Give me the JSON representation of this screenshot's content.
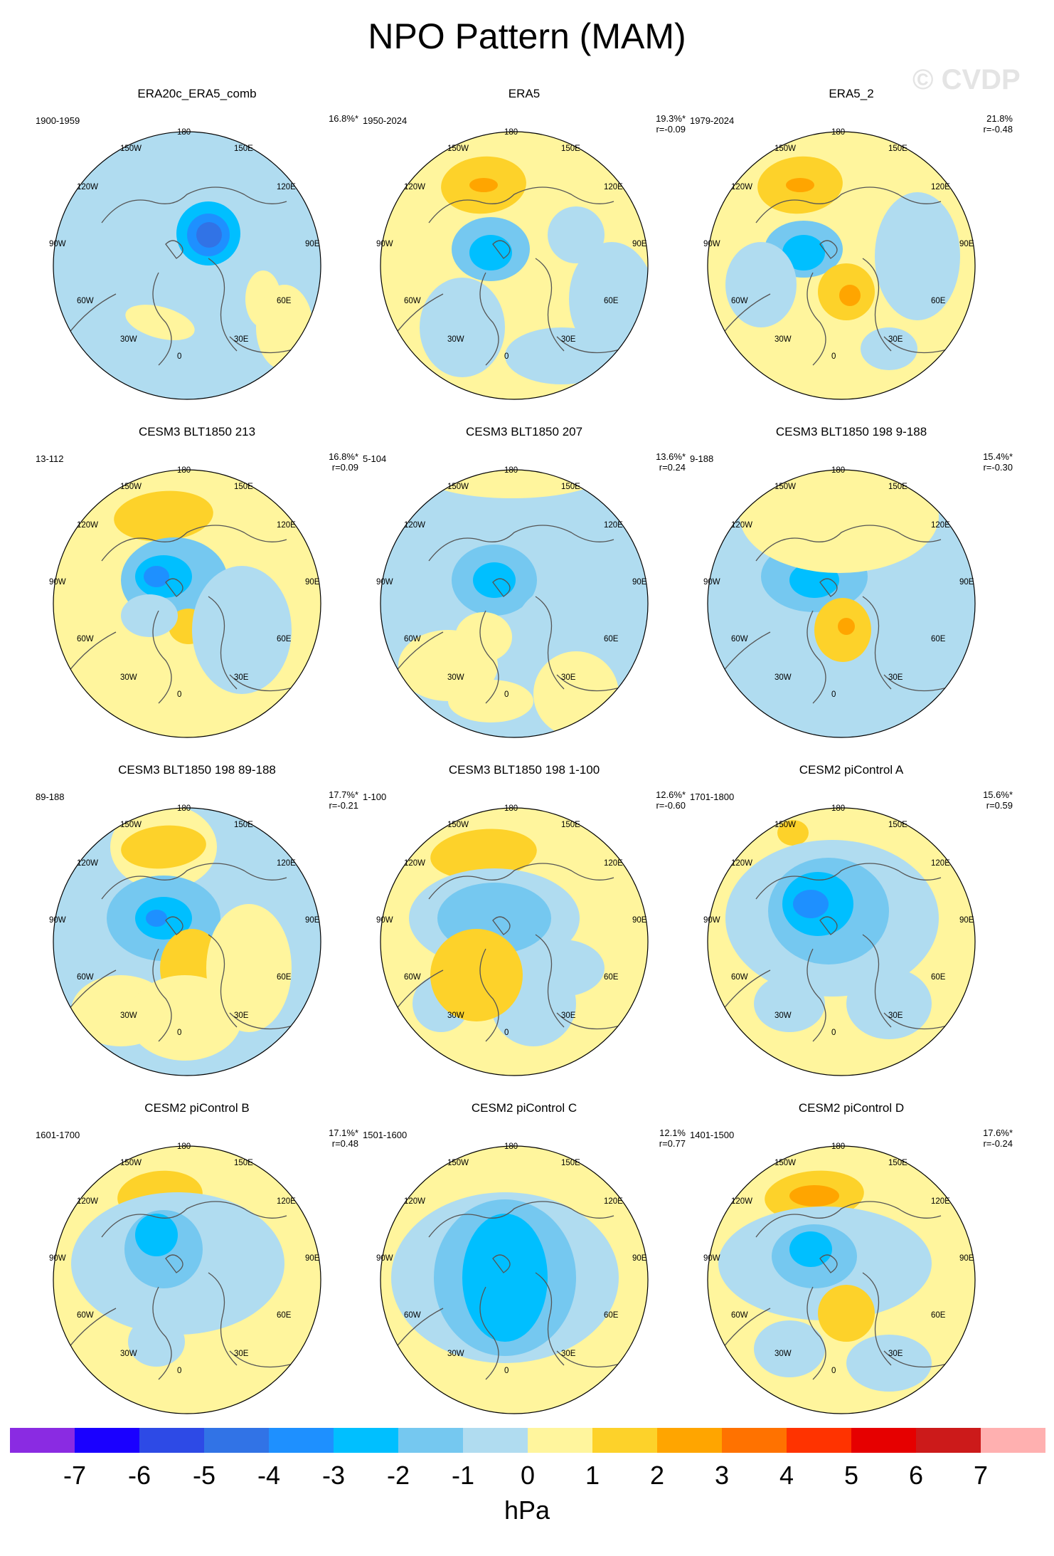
{
  "title": "NPO Pattern (MAM)",
  "watermark": "© CVDP",
  "lon_labels": [
    "180",
    "150W",
    "150E",
    "120W",
    "120E",
    "90W",
    "90E",
    "60W",
    "60E",
    "30W",
    "30E",
    "0"
  ],
  "panels": [
    {
      "title": "ERA20c_ERA5_comb",
      "period": "1900-1959",
      "pct": "16.8%*",
      "r": ""
    },
    {
      "title": "ERA5",
      "period": "1950-2024",
      "pct": "19.3%*",
      "r": "r=-0.09"
    },
    {
      "title": "ERA5_2",
      "period": "1979-2024",
      "pct": "21.8%",
      "r": "r=-0.48"
    },
    {
      "title": "CESM3 BLT1850 213",
      "period": "13-112",
      "pct": "16.8%*",
      "r": "r=0.09"
    },
    {
      "title": "CESM3 BLT1850 207",
      "period": "5-104",
      "pct": "13.6%*",
      "r": "r=0.24"
    },
    {
      "title": "CESM3 BLT1850 198 9-188",
      "period": "9-188",
      "pct": "15.4%*",
      "r": "r=-0.30"
    },
    {
      "title": "CESM3 BLT1850 198 89-188",
      "period": "89-188",
      "pct": "17.7%*",
      "r": "r=-0.21"
    },
    {
      "title": "CESM3 BLT1850 198 1-100",
      "period": "1-100",
      "pct": "12.6%*",
      "r": "r=-0.60"
    },
    {
      "title": "CESM2 piControl A",
      "period": "1701-1800",
      "pct": "15.6%*",
      "r": "r=0.59"
    },
    {
      "title": "CESM2 piControl B",
      "period": "1601-1700",
      "pct": "17.1%*",
      "r": "r=0.48"
    },
    {
      "title": "CESM2 piControl C",
      "period": "1501-1600",
      "pct": "12.1%",
      "r": "r=0.77"
    },
    {
      "title": "CESM2 piControl D",
      "period": "1401-1500",
      "pct": "17.6%*",
      "r": "r=-0.24"
    }
  ],
  "colorbar": {
    "unit": "hPa",
    "labels": [
      "-7",
      "-6",
      "-5",
      "-4",
      "-3",
      "-2",
      "-1",
      "0",
      "1",
      "2",
      "3",
      "4",
      "5",
      "6",
      "7"
    ],
    "colors": [
      "#8a2be2",
      "#1a00ff",
      "#2d4ae6",
      "#3173e6",
      "#1e90ff",
      "#00bfff",
      "#75c8f0",
      "#b0dcf0",
      "#fff59d",
      "#fdd22a",
      "#ffa500",
      "#ff7200",
      "#ff3300",
      "#e60000",
      "#cc1a1a",
      "#ffb0b0"
    ]
  },
  "colors": {
    "land_outline": "#555555",
    "rim": "#000000"
  }
}
